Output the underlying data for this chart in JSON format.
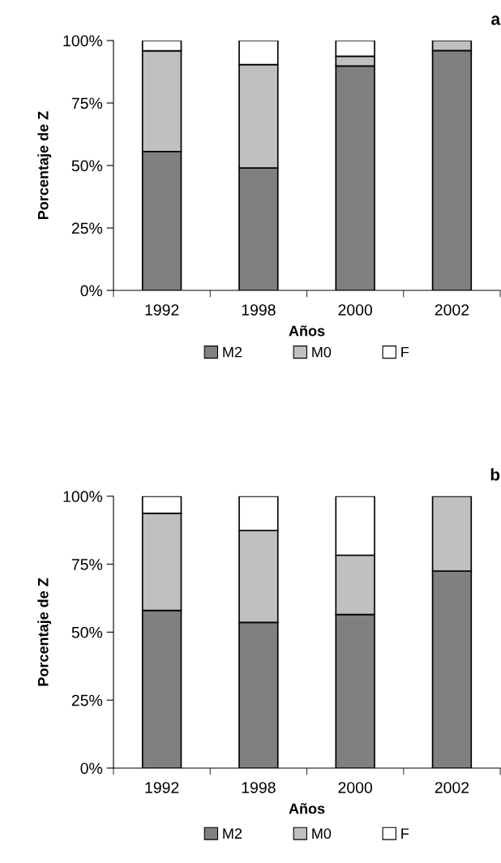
{
  "chart_data": [
    {
      "type": "bar",
      "title": "a",
      "xlabel": "Años",
      "ylabel": "Porcentaje de Z",
      "categories": [
        "1992",
        "1998",
        "2000",
        "2002"
      ],
      "stacked": true,
      "legend": "bottom",
      "grid": false,
      "ylim": [
        0,
        100
      ],
      "yticks": [
        {
          "value": 0,
          "label": "0%"
        },
        {
          "value": 25,
          "label": "25%"
        },
        {
          "value": 50,
          "label": "50%"
        },
        {
          "value": 75,
          "label": "75%"
        },
        {
          "value": 100,
          "label": "100%"
        }
      ],
      "series": [
        {
          "name": "M2",
          "color": "#808080",
          "values": [
            55.6,
            49.0,
            89.8,
            96.0
          ]
        },
        {
          "name": "M0",
          "color": "#c0c0c0",
          "values": [
            40.3,
            41.4,
            3.9,
            4.0
          ]
        },
        {
          "name": "F",
          "color": "#ffffff",
          "values": [
            4.1,
            9.6,
            6.3,
            null
          ]
        }
      ]
    },
    {
      "type": "bar",
      "title": "b",
      "xlabel": "Años",
      "ylabel": "Porcentaje de Z",
      "categories": [
        "1992",
        "1998",
        "2000",
        "2002"
      ],
      "stacked": true,
      "legend": "bottom",
      "grid": false,
      "ylim": [
        0,
        100
      ],
      "yticks": [
        {
          "value": 0,
          "label": "0%"
        },
        {
          "value": 25,
          "label": "25%"
        },
        {
          "value": 50,
          "label": "50%"
        },
        {
          "value": 75,
          "label": "75%"
        },
        {
          "value": 100,
          "label": "100%"
        }
      ],
      "series": [
        {
          "name": "M2",
          "color": "#808080",
          "values": [
            58.0,
            53.6,
            56.5,
            72.5
          ]
        },
        {
          "name": "M0",
          "color": "#c0c0c0",
          "values": [
            35.7,
            33.8,
            21.8,
            27.5
          ]
        },
        {
          "name": "F",
          "color": "#ffffff",
          "values": [
            6.3,
            12.6,
            21.7,
            null
          ]
        }
      ]
    }
  ]
}
